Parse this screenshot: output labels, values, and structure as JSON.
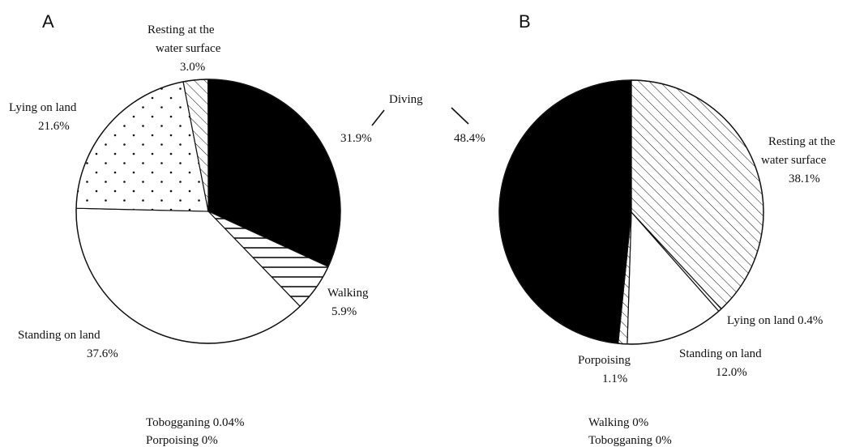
{
  "colors": {
    "stroke": "#111111",
    "black_fill": "#000000",
    "white_fill": "#ffffff"
  },
  "chart_data": [
    {
      "type": "pie",
      "panel": "A",
      "slices": [
        {
          "name": "Diving",
          "value": 31.9,
          "label": "31.9%",
          "fill": "black"
        },
        {
          "name": "Walking",
          "value": 5.9,
          "label": "5.9%",
          "fill": "horizontal-hatch"
        },
        {
          "name": "Standing on land",
          "value": 37.6,
          "label": "37.6%",
          "fill": "white"
        },
        {
          "name": "Lying on land",
          "value": 21.6,
          "label": "21.6%",
          "fill": "dots"
        },
        {
          "name": "Resting at the water surface",
          "value": 3.0,
          "label": "3.0%",
          "fill": "diagonal-hatch"
        },
        {
          "name": "Tobogganing",
          "value": 0.04,
          "label": "0.04%"
        },
        {
          "name": "Porpoising",
          "value": 0,
          "label": "0%"
        }
      ],
      "footnote_lines": [
        "Tobogganing 0.04%",
        "Porpoising 0%"
      ]
    },
    {
      "type": "pie",
      "panel": "B",
      "slices": [
        {
          "name": "Resting at the water surface",
          "value": 38.1,
          "label": "38.1%",
          "fill": "diagonal-hatch"
        },
        {
          "name": "Lying on land",
          "value": 0.4,
          "label": "0.4%",
          "fill": "white"
        },
        {
          "name": "Standing on land",
          "value": 12.0,
          "label": "12.0%",
          "fill": "white"
        },
        {
          "name": "Porpoising",
          "value": 1.1,
          "label": "1.1%",
          "fill": "diagonal-hatch"
        },
        {
          "name": "Diving",
          "value": 48.4,
          "label": "48.4%",
          "fill": "black"
        },
        {
          "name": "Walking",
          "value": 0,
          "label": "0%"
        },
        {
          "name": "Tobogganing",
          "value": 0,
          "label": "0%"
        }
      ],
      "footnote_lines": [
        "Walking 0%",
        "Tobogganing 0%"
      ]
    }
  ],
  "labels": {
    "panel_a": "A",
    "panel_b": "B",
    "diving": "Diving",
    "a_diving_pct": "31.9%",
    "b_diving_pct": "48.4%",
    "a_resting_1": "Resting at the",
    "a_resting_2": "water surface",
    "a_resting_3": "3.0%",
    "a_lying_1": "Lying on land",
    "a_lying_2": "21.6%",
    "a_walking_1": "Walking",
    "a_walking_2": "5.9%",
    "a_standing_1": "Standing on land",
    "a_standing_2": "37.6%",
    "a_foot_1": "Tobogganing 0.04%",
    "a_foot_2": "Porpoising 0%",
    "b_resting_1": "Resting at the",
    "b_resting_2": "water surface",
    "b_resting_3": "38.1%",
    "b_lying": "Lying on land 0.4%",
    "b_standing_1": "Standing on land",
    "b_standing_2": "12.0%",
    "b_porp_1": "Porpoising",
    "b_porp_2": "1.1%",
    "b_foot_1": "Walking 0%",
    "b_foot_2": "Tobogganing 0%"
  }
}
